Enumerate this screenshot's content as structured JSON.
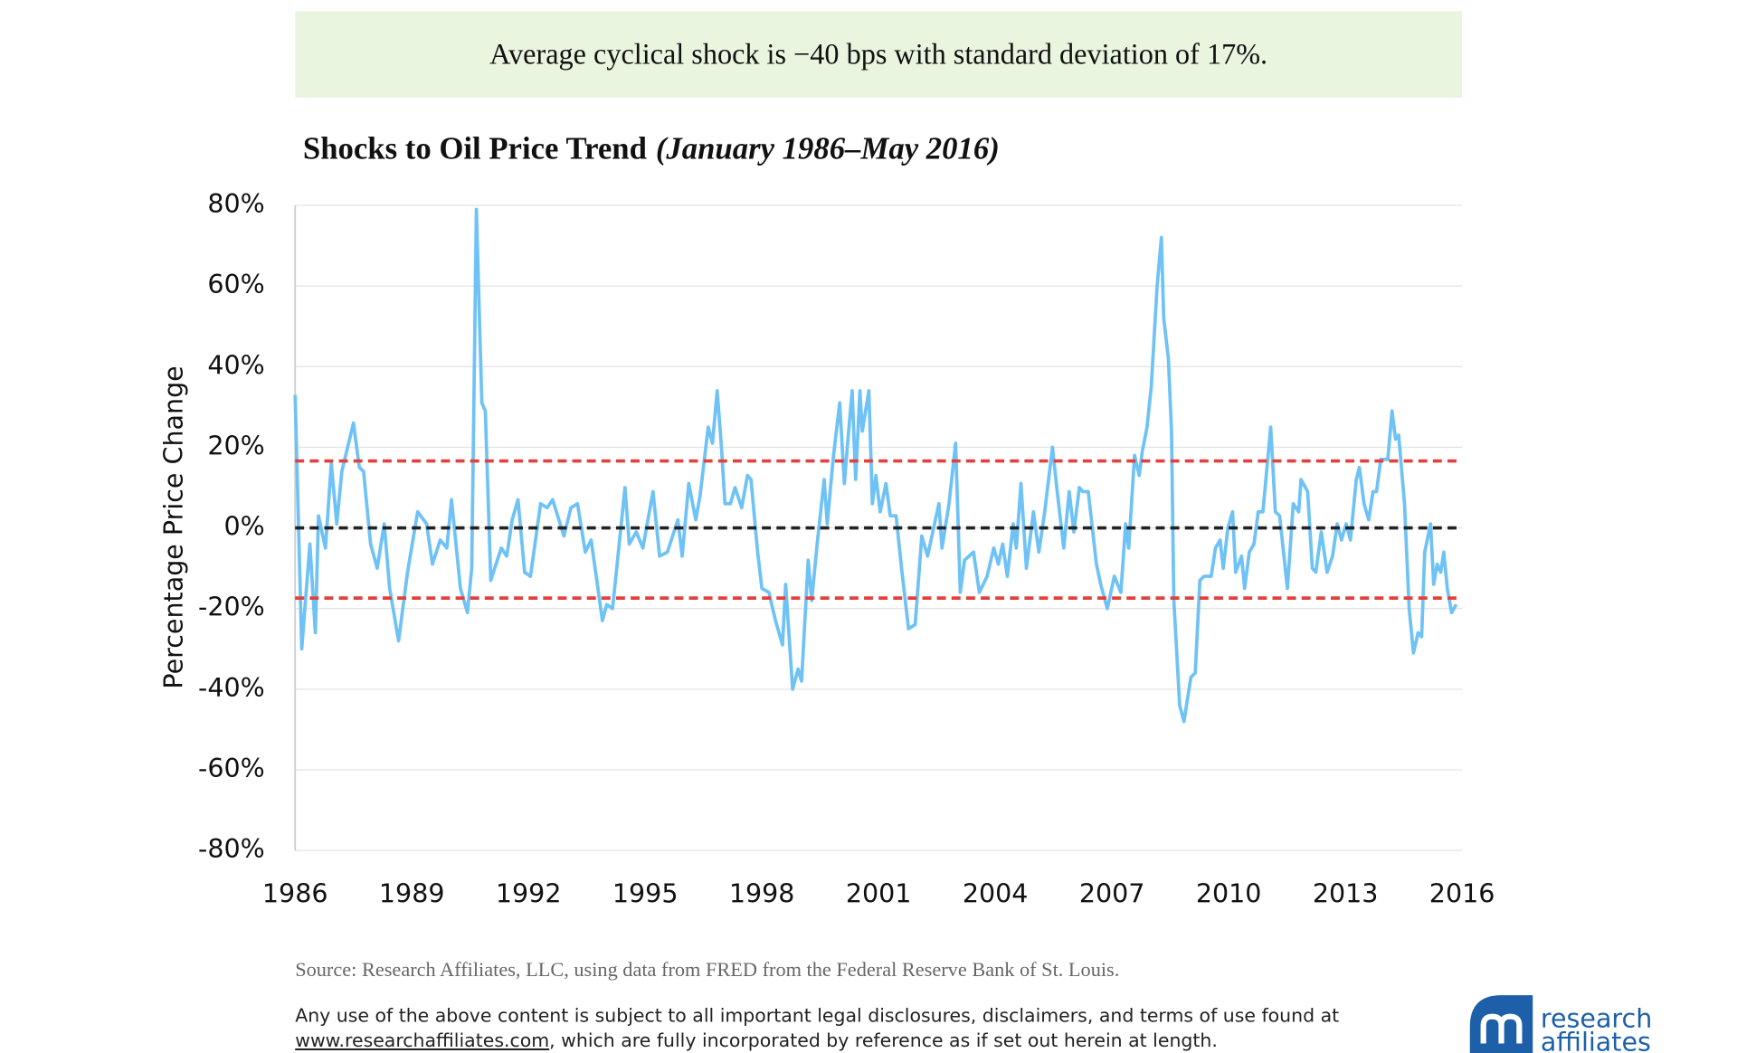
{
  "banner": "Average cyclical shock is −40 bps with standard deviation of 17%.",
  "chart_data": {
    "type": "line",
    "title": "Shocks to Oil Price Trend",
    "subtitle": "(January 1986–May 2016)",
    "ylabel": "Percentage Price Change",
    "xlim": [
      1986,
      2016
    ],
    "xticks": [
      1986,
      1989,
      1992,
      1995,
      1998,
      2001,
      2004,
      2007,
      2010,
      2013,
      2016
    ],
    "ylim": [
      -80,
      80
    ],
    "yticks": [
      {
        "value": -80,
        "label": "-80%"
      },
      {
        "value": -60,
        "label": "-60%"
      },
      {
        "value": -40,
        "label": "-40%"
      },
      {
        "value": -20,
        "label": "-20%"
      },
      {
        "value": 0,
        "label": "0%"
      },
      {
        "value": 20,
        "label": "20%"
      },
      {
        "value": 40,
        "label": "40%"
      },
      {
        "value": 60,
        "label": "60%"
      },
      {
        "value": 80,
        "label": "80%"
      }
    ],
    "grid": true,
    "reference_lines": [
      {
        "value": 16.6,
        "color": "#e2413b"
      },
      {
        "value": 0,
        "color": "#222222"
      },
      {
        "value": -17.4,
        "color": "#e2413b"
      }
    ],
    "x": [
      1986.0,
      1986.17,
      1986.38,
      1986.52,
      1986.6,
      1986.78,
      1986.93,
      1987.07,
      1987.2,
      1987.5,
      1987.65,
      1987.76,
      1987.94,
      1988.11,
      1988.29,
      1988.43,
      1988.66,
      1988.89,
      1989.15,
      1989.38,
      1989.53,
      1989.73,
      1989.9,
      1990.02,
      1990.25,
      1990.43,
      1990.54,
      1990.66,
      1990.8,
      1990.89,
      1991.03,
      1991.3,
      1991.44,
      1991.58,
      1991.73,
      1991.9,
      1992.05,
      1992.31,
      1992.48,
      1992.62,
      1992.91,
      1993.09,
      1993.26,
      1993.46,
      1993.61,
      1993.9,
      1994.01,
      1994.16,
      1994.3,
      1994.48,
      1994.59,
      1994.77,
      1994.94,
      1995.2,
      1995.37,
      1995.57,
      1995.84,
      1995.95,
      1996.12,
      1996.3,
      1996.41,
      1996.62,
      1996.73,
      1996.85,
      1996.96,
      1997.05,
      1997.19,
      1997.31,
      1997.48,
      1997.63,
      1997.72,
      1997.89,
      1998.0,
      1998.18,
      1998.35,
      1998.53,
      1998.61,
      1998.79,
      1998.93,
      1999.02,
      1999.19,
      1999.28,
      1999.42,
      1999.6,
      1999.68,
      1999.83,
      2000.0,
      2000.12,
      2000.23,
      2000.32,
      2000.41,
      2000.52,
      2000.58,
      2000.75,
      2000.84,
      2000.93,
      2001.04,
      2001.19,
      2001.3,
      2001.45,
      2001.59,
      2001.77,
      2001.94,
      2002.11,
      2002.26,
      2002.37,
      2002.55,
      2002.63,
      2002.81,
      2002.98,
      2003.1,
      2003.21,
      2003.44,
      2003.59,
      2003.79,
      2003.96,
      2004.08,
      2004.19,
      2004.31,
      2004.46,
      2004.54,
      2004.66,
      2004.8,
      2004.98,
      2005.12,
      2005.27,
      2005.47,
      2005.58,
      2005.76,
      2005.9,
      2006.02,
      2006.16,
      2006.25,
      2006.39,
      2006.6,
      2006.71,
      2006.88,
      2007.06,
      2007.23,
      2007.35,
      2007.43,
      2007.58,
      2007.7,
      2007.78,
      2007.9,
      2008.01,
      2008.16,
      2008.27,
      2008.33,
      2008.45,
      2008.53,
      2008.59,
      2008.74,
      2008.85,
      2009.03,
      2009.14,
      2009.26,
      2009.37,
      2009.55,
      2009.66,
      2009.78,
      2009.86,
      2009.98,
      2010.1,
      2010.18,
      2010.33,
      2010.41,
      2010.53,
      2010.65,
      2010.76,
      2010.88,
      2011.08,
      2011.2,
      2011.31,
      2011.51,
      2011.66,
      2011.8,
      2011.86,
      2012.03,
      2012.15,
      2012.24,
      2012.38,
      2012.53,
      2012.67,
      2012.79,
      2012.9,
      2013.02,
      2013.13,
      2013.28,
      2013.36,
      2013.48,
      2013.6,
      2013.71,
      2013.8,
      2013.91,
      2014.09,
      2014.2,
      2014.29,
      2014.37,
      2014.52,
      2014.64,
      2014.75,
      2014.87,
      2014.96,
      2015.04,
      2015.19,
      2015.27,
      2015.36,
      2015.45,
      2015.53,
      2015.62,
      2015.73,
      2015.85
    ],
    "series": [
      {
        "color": "#6fc2f6",
        "values": [
          33,
          -30,
          -4,
          -26,
          3,
          -5,
          16,
          1,
          14,
          26,
          15,
          14,
          -4,
          -10,
          1,
          -15,
          -28,
          -11,
          4,
          1,
          -9,
          -3,
          -5,
          7,
          -15,
          -21,
          -10,
          79,
          31,
          29,
          -13,
          -5,
          -7,
          2,
          7,
          -11,
          -12,
          6,
          5,
          7,
          -2,
          5,
          6,
          -6,
          -3,
          -23,
          -19,
          -20,
          -7,
          10,
          -4,
          -1,
          -5,
          9,
          -7,
          -6,
          2,
          -7,
          11,
          2,
          8,
          25,
          21,
          34,
          20,
          6,
          6,
          10,
          5,
          13,
          12,
          -6,
          -15,
          -16,
          -23,
          -29,
          -14,
          -40,
          -35,
          -38,
          -8,
          -18,
          -4,
          12,
          1,
          17,
          31,
          11,
          24,
          34,
          12,
          34,
          24,
          34,
          6,
          13,
          4,
          11,
          3,
          3,
          -10,
          -25,
          -24,
          -2,
          -7,
          -2,
          6,
          -5,
          6,
          21,
          -16,
          -8,
          -6,
          -16,
          -12,
          -5,
          -9,
          -4,
          -12,
          1,
          -5,
          11,
          -10,
          4,
          -6,
          4,
          20,
          10,
          -5,
          9,
          -1,
          10,
          9,
          9,
          -9,
          -14,
          -20,
          -12,
          -16,
          1,
          -5,
          18,
          13,
          19,
          25,
          35,
          60,
          72,
          52,
          42,
          24,
          -18,
          -44,
          -48,
          -37,
          -36,
          -13,
          -12,
          -12,
          -5,
          -3,
          -10,
          0,
          4,
          -11,
          -7,
          -15,
          -6,
          -4,
          4,
          4,
          25,
          4,
          3,
          -15,
          6,
          4,
          12,
          9,
          -10,
          -11,
          -1,
          -11,
          -7,
          1,
          -3,
          1,
          -3,
          12,
          15,
          6,
          2,
          9,
          9,
          17,
          17,
          29,
          22,
          23,
          6,
          -20,
          -31,
          -26,
          -27,
          -6,
          1,
          -14,
          -9,
          -11,
          -6,
          -15,
          -21,
          -19
        ]
      }
    ]
  },
  "source": "Source: Research Affiliates, LLC, using data from FRED from the Federal Reserve Bank of St. Louis.",
  "disclaimer": {
    "line1": "Any use of the above content is subject to all important legal disclosures, disclaimers, and terms of use found at",
    "link": "www.researchaffiliates.com",
    "line2": ", which are fully incorporated by reference as if set out herein at length."
  },
  "logo": {
    "word1": "research",
    "word2": "affiliates"
  }
}
